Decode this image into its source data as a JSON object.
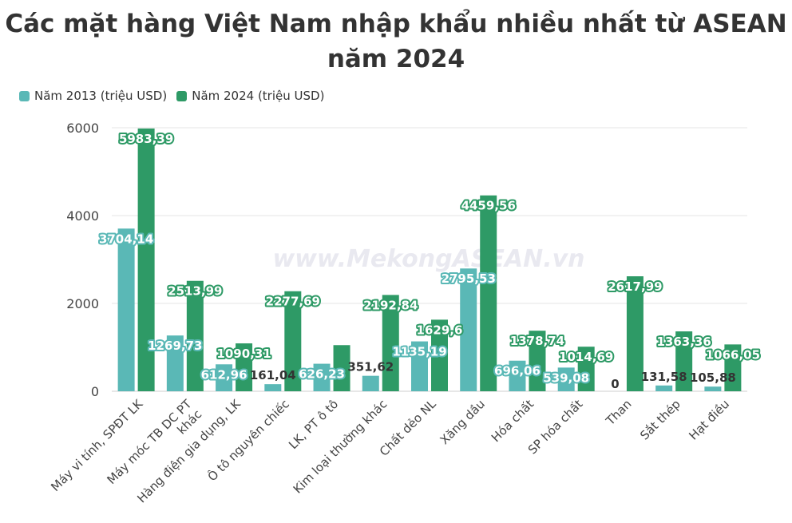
{
  "title": "Các mặt hàng Việt Nam nhập khẩu nhiều nhất từ ASEAN năm 2024",
  "watermark": "www.MekongASEAN.vn",
  "colors": {
    "series_2013": "#5ab8b6",
    "series_2024": "#2e9a66"
  },
  "chart_data": {
    "type": "bar",
    "title": "Các mặt hàng Việt Nam nhập khẩu nhiều nhất từ ASEAN năm 2024",
    "categories": [
      "Máy vi tính, SPĐT LK",
      "Máy móc TB DC PT khác",
      "Hàng điện gia dụng, LK",
      "Ô tô nguyên chiếc",
      "LK, PT ô tô",
      "Kim loại thường khác",
      "Chất dẻo NL",
      "Xăng dầu",
      "Hóa chất",
      "SP hóa chất",
      "Than",
      "Sắt thép",
      "Hạt điều"
    ],
    "series": [
      {
        "name": "Năm 2013 (triệu USD)",
        "values": [
          3704.14,
          1269.73,
          612.96,
          161.04,
          626.23,
          351.62,
          1135.19,
          2795.53,
          696.06,
          539.08,
          0,
          131.58,
          105.88
        ],
        "labels": [
          "3704,14",
          "1269,73",
          "612,96",
          "161,04",
          "626,23",
          "351,62",
          "1135,19",
          "2795,53",
          "696,06",
          "539,08",
          "0",
          "131,58",
          "105,88"
        ]
      },
      {
        "name": "Năm 2024 (triệu USD)",
        "values": [
          5983.39,
          2513.99,
          1090.31,
          2277.69,
          1050,
          2192.84,
          1629.6,
          4459.56,
          1378.74,
          1014.69,
          2617.99,
          1363.36,
          1066.05
        ],
        "labels": [
          "5983,39",
          "2513,99",
          "1090,31",
          "2277,69",
          "",
          "2192,84",
          "1629,6",
          "4459,56",
          "1378,74",
          "1014,69",
          "2617,99",
          "1363,36",
          "1066,05"
        ]
      }
    ],
    "y_ticks": [
      "0",
      "2000",
      "4000",
      "6000"
    ],
    "ylim": [
      0,
      6000
    ],
    "grid": true,
    "legend": "top-left"
  }
}
